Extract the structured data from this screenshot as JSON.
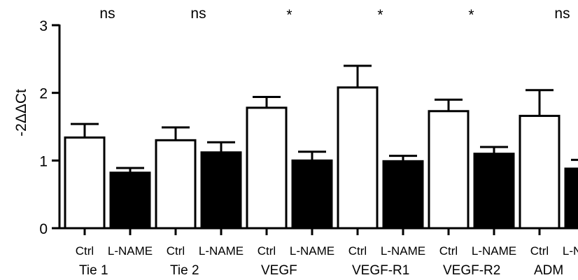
{
  "chart_data": {
    "type": "bar",
    "ylabel": "-2ΔΔCt",
    "ylim": [
      0,
      3
    ],
    "yticks": [
      0,
      1,
      2,
      3
    ],
    "grid": false,
    "groups": [
      {
        "label": "Tie 1",
        "significance": "ns"
      },
      {
        "label": "Tie 2",
        "significance": "ns"
      },
      {
        "label": "VEGF",
        "significance": "*"
      },
      {
        "label": "VEGF-R1",
        "significance": "*"
      },
      {
        "label": "VEGF-R2",
        "significance": "*"
      },
      {
        "label": "ADM",
        "significance": "ns"
      }
    ],
    "conditions": [
      "Ctrl",
      "L-NAME"
    ],
    "series": [
      {
        "name": "Ctrl",
        "fill": "#ffffff",
        "values": [
          1.34,
          1.3,
          1.78,
          2.08,
          1.73,
          1.66
        ],
        "errors": [
          0.2,
          0.19,
          0.16,
          0.32,
          0.17,
          0.38
        ]
      },
      {
        "name": "L-NAME",
        "fill": "#000000",
        "values": [
          0.82,
          1.12,
          1.0,
          0.99,
          1.1,
          0.88
        ],
        "errors": [
          0.07,
          0.15,
          0.13,
          0.08,
          0.1,
          0.13
        ]
      }
    ]
  }
}
